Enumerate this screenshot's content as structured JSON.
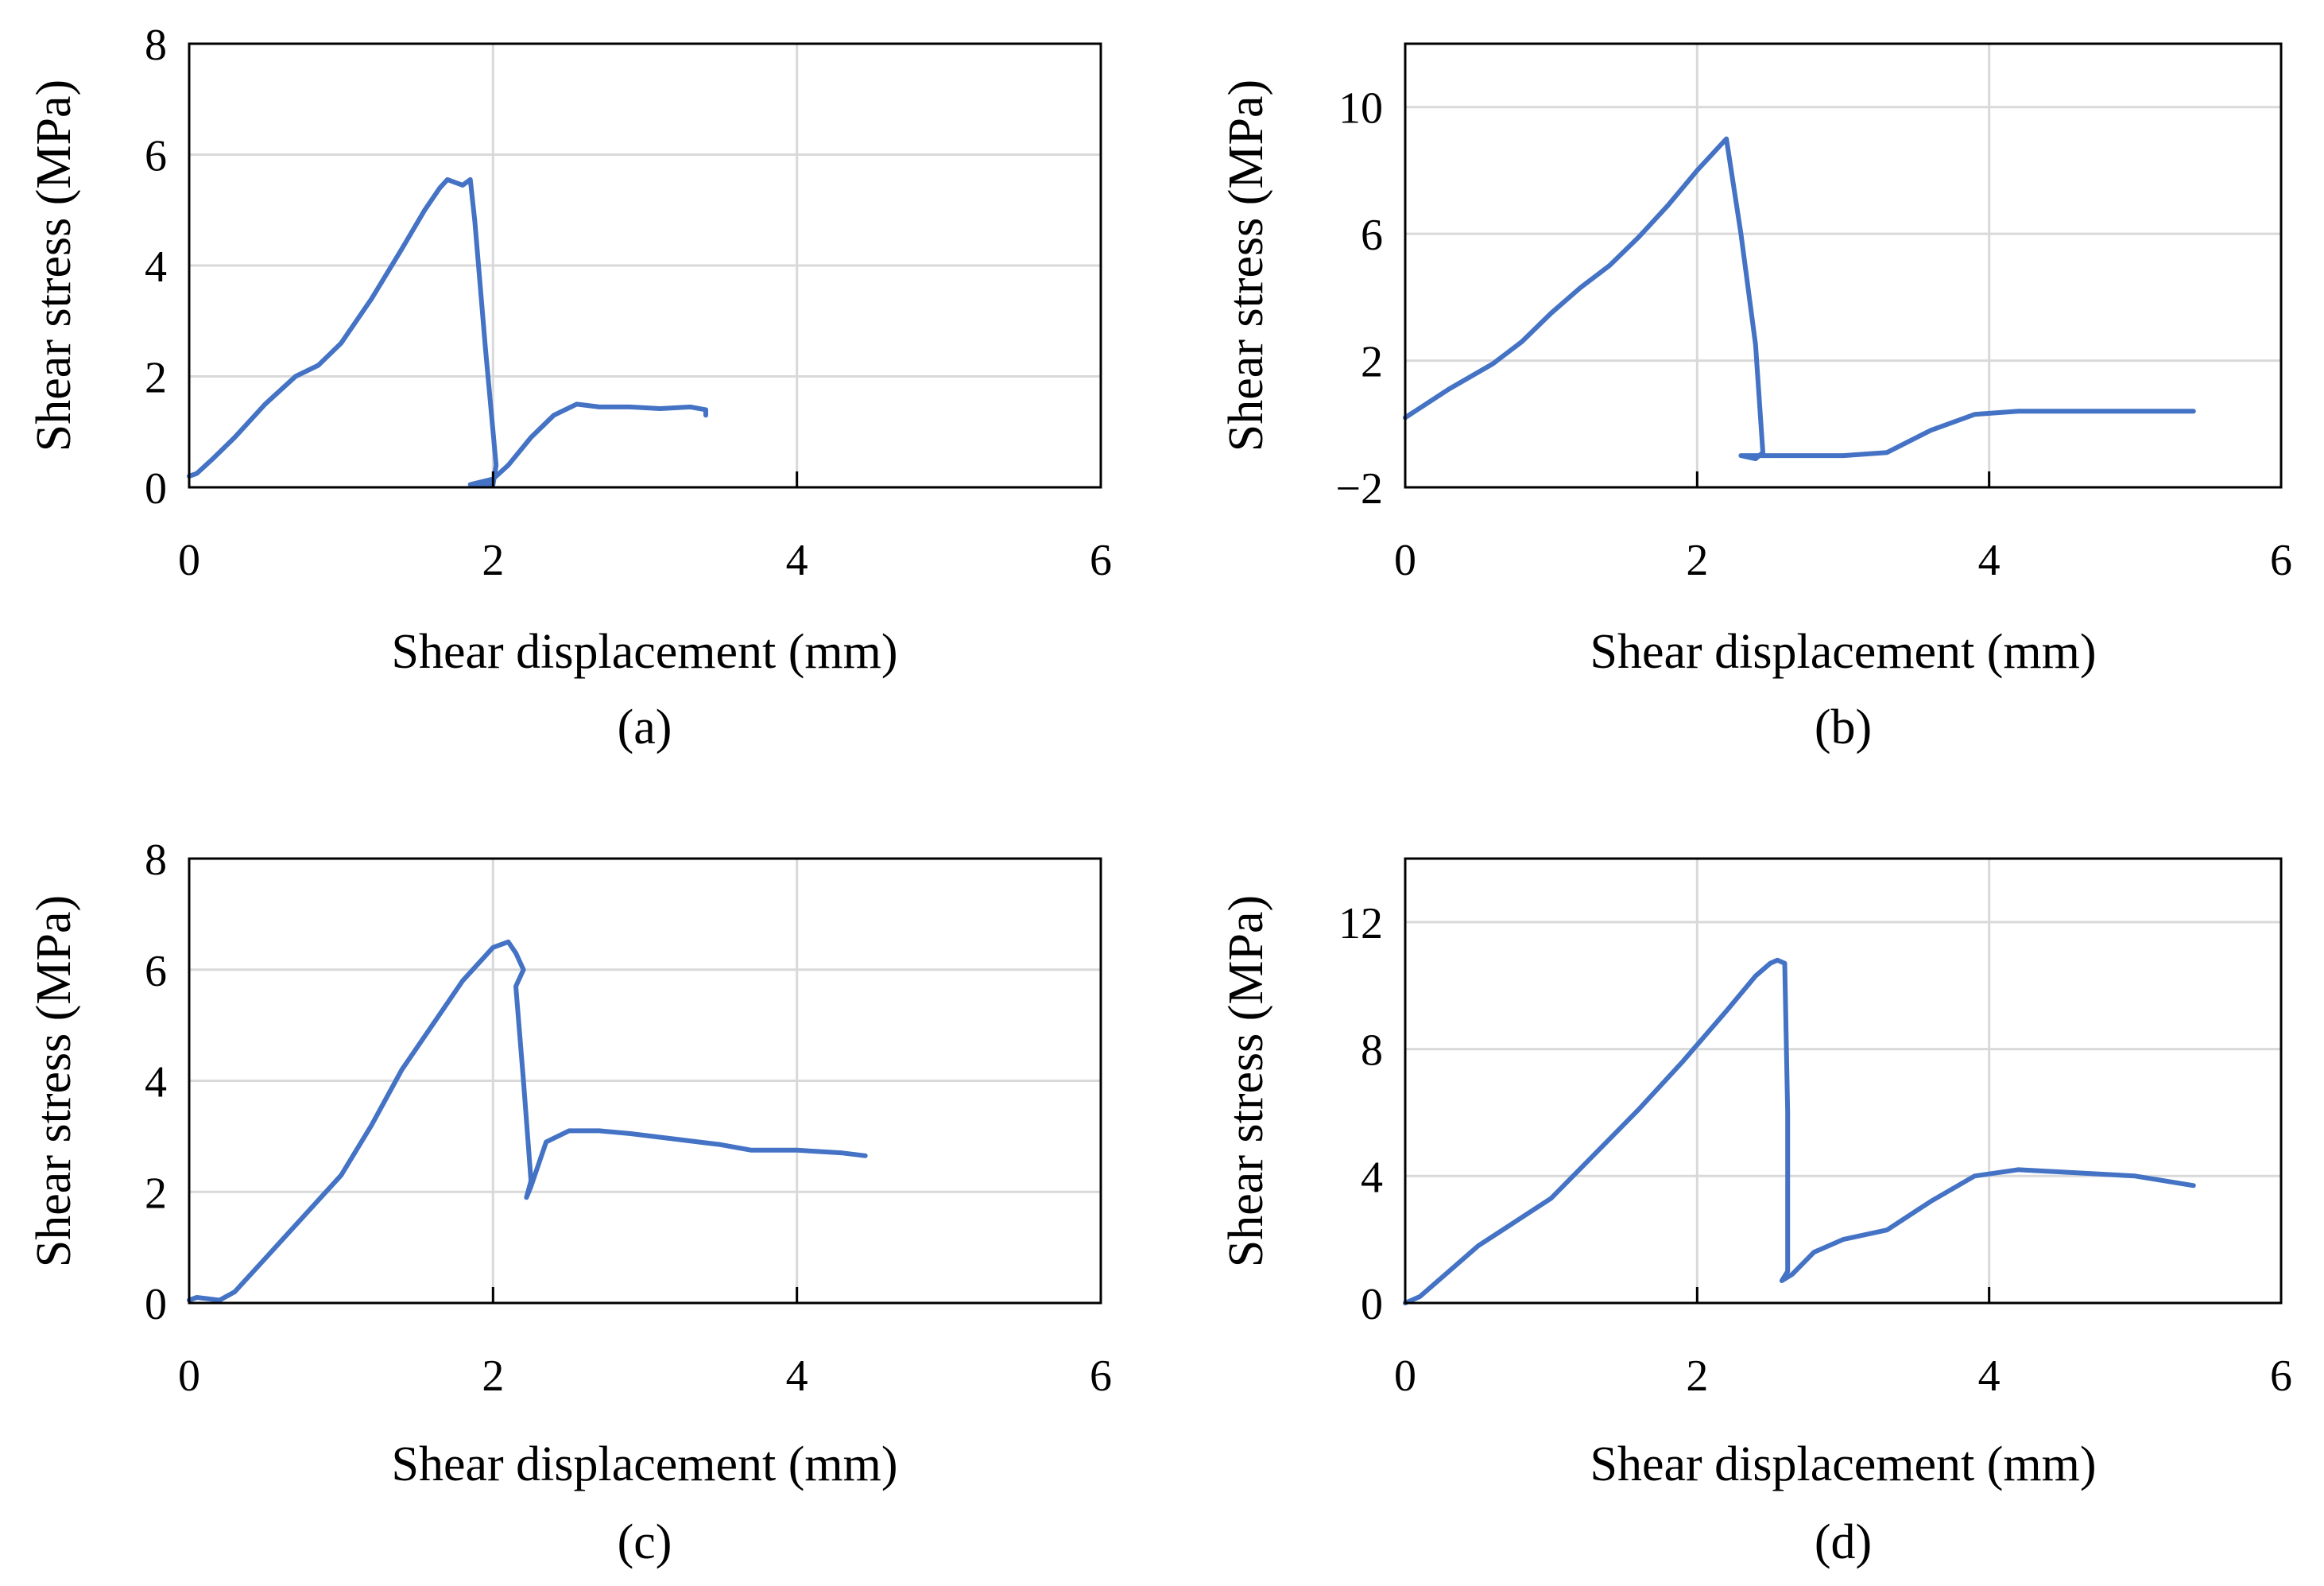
{
  "colors": {
    "series": "#4472c4",
    "grid": "#d9d9d9",
    "axis": "#000000"
  },
  "chart_data": [
    {
      "type": "line",
      "caption": "(a)",
      "xlabel": "Shear displacement (mm)",
      "ylabel": "Shear stress (MPa)",
      "xlim": [
        0,
        6
      ],
      "ylim": [
        0,
        8
      ],
      "xticks": [
        0,
        2,
        4,
        6
      ],
      "yticks": [
        0,
        2,
        4,
        6,
        8
      ],
      "grid": true,
      "series": [
        {
          "name": "Shear stress",
          "x": [
            0.0,
            0.05,
            0.15,
            0.3,
            0.5,
            0.7,
            0.85,
            1.0,
            1.2,
            1.4,
            1.55,
            1.65,
            1.7,
            1.75,
            1.8,
            1.85,
            1.88,
            1.95,
            2.02,
            2.0,
            1.85,
            2.0,
            2.1,
            2.25,
            2.4,
            2.55,
            2.7,
            2.9,
            3.1,
            3.3,
            3.4,
            3.4
          ],
          "y": [
            0.2,
            0.25,
            0.5,
            0.9,
            1.5,
            2.0,
            2.2,
            2.6,
            3.4,
            4.3,
            5.0,
            5.4,
            5.55,
            5.5,
            5.45,
            5.55,
            4.8,
            2.5,
            0.4,
            0.05,
            0.05,
            0.15,
            0.4,
            0.9,
            1.3,
            1.5,
            1.45,
            1.45,
            1.42,
            1.45,
            1.4,
            1.3
          ]
        }
      ]
    },
    {
      "type": "line",
      "caption": "(b)",
      "xlabel": "Shear displacement (mm)",
      "ylabel": "Shear stress (MPa)",
      "xlim": [
        0,
        6
      ],
      "ylim": [
        -2,
        12
      ],
      "xticks": [
        0,
        2,
        4,
        6
      ],
      "yticks": [
        -2,
        2,
        6,
        10
      ],
      "ytick_labels": [
        "−2",
        "2",
        "6",
        "10"
      ],
      "grid": true,
      "series": [
        {
          "name": "Shear stress",
          "x": [
            0.0,
            0.3,
            0.6,
            0.8,
            1.0,
            1.2,
            1.4,
            1.6,
            1.8,
            2.0,
            2.1,
            2.2,
            2.3,
            2.4,
            2.45,
            2.4,
            2.3,
            2.6,
            3.0,
            3.3,
            3.6,
            3.9,
            4.2,
            4.6,
            5.0,
            5.4
          ],
          "y": [
            0.2,
            1.1,
            1.9,
            2.6,
            3.5,
            4.3,
            5.0,
            5.9,
            6.9,
            8.0,
            8.5,
            9.0,
            6.0,
            2.5,
            -0.9,
            -1.1,
            -1.0,
            -1.0,
            -1.0,
            -0.9,
            -0.2,
            0.3,
            0.4,
            0.4,
            0.4,
            0.4
          ]
        }
      ]
    },
    {
      "type": "line",
      "caption": "(c)",
      "xlabel": "Shear displacement (mm)",
      "ylabel": "Shear stress (MPa)",
      "xlim": [
        0,
        6
      ],
      "ylim": [
        0,
        8
      ],
      "xticks": [
        0,
        2,
        4,
        6
      ],
      "yticks": [
        0,
        2,
        4,
        6,
        8
      ],
      "grid": true,
      "series": [
        {
          "name": "Shear stress",
          "x": [
            0.0,
            0.05,
            0.2,
            0.3,
            0.5,
            0.7,
            1.0,
            1.2,
            1.4,
            1.6,
            1.8,
            2.0,
            2.1,
            2.15,
            2.2,
            2.15,
            2.2,
            2.25,
            2.22,
            2.25,
            2.35,
            2.5,
            2.7,
            2.9,
            3.2,
            3.5,
            3.7,
            4.0,
            4.3,
            4.45
          ],
          "y": [
            0.05,
            0.1,
            0.05,
            0.2,
            0.8,
            1.4,
            2.3,
            3.2,
            4.2,
            5.0,
            5.8,
            6.4,
            6.5,
            6.3,
            6.0,
            5.7,
            4.0,
            2.2,
            1.9,
            2.1,
            2.9,
            3.1,
            3.1,
            3.05,
            2.95,
            2.85,
            2.75,
            2.75,
            2.7,
            2.65
          ]
        }
      ]
    },
    {
      "type": "line",
      "caption": "(d)",
      "xlabel": "Shear displacement (mm)",
      "ylabel": "Shear stress (MPa)",
      "xlim": [
        0,
        6
      ],
      "ylim": [
        0,
        14
      ],
      "xticks": [
        0,
        2,
        4,
        6
      ],
      "yticks": [
        0,
        4,
        8,
        12
      ],
      "grid": true,
      "series": [
        {
          "name": "Shear stress",
          "x": [
            0.0,
            0.1,
            0.3,
            0.5,
            0.7,
            1.0,
            1.3,
            1.6,
            1.9,
            2.2,
            2.4,
            2.5,
            2.55,
            2.6,
            2.62,
            2.62,
            2.58,
            2.65,
            2.8,
            3.0,
            3.3,
            3.6,
            3.9,
            4.2,
            4.6,
            5.0,
            5.4
          ],
          "y": [
            0.0,
            0.2,
            1.0,
            1.8,
            2.4,
            3.3,
            4.7,
            6.1,
            7.6,
            9.2,
            10.3,
            10.7,
            10.8,
            10.7,
            6.0,
            1.0,
            0.7,
            0.9,
            1.6,
            2.0,
            2.3,
            3.2,
            4.0,
            4.2,
            4.1,
            4.0,
            3.7
          ]
        }
      ]
    }
  ]
}
